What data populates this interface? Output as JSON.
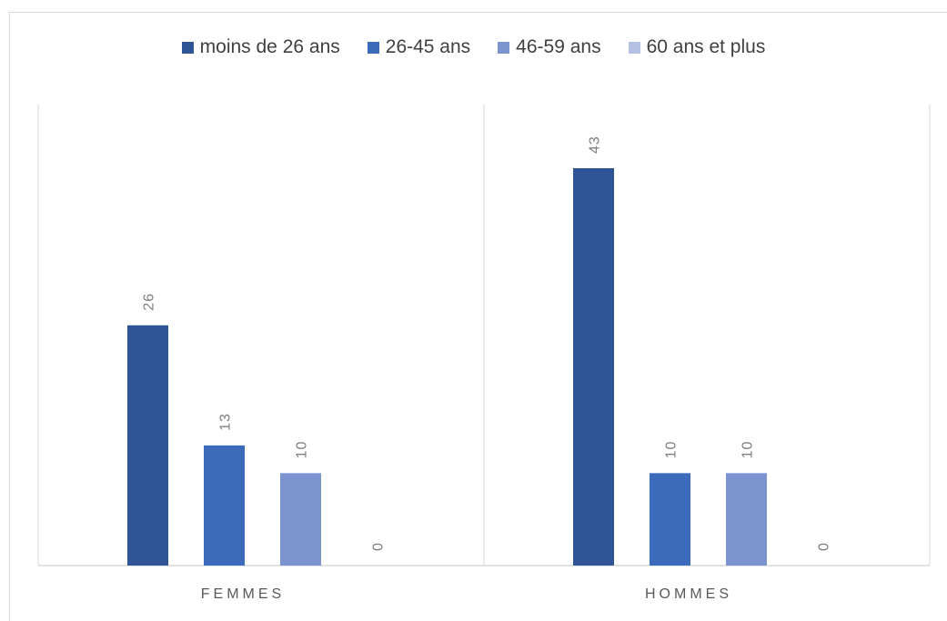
{
  "chart_data": {
    "type": "bar",
    "title": "",
    "xlabel": "",
    "ylabel": "",
    "categories": [
      "FEMMES",
      "HOMMES"
    ],
    "series": [
      {
        "name": "moins de 26 ans",
        "values": [
          26,
          43
        ],
        "color": "#2f5597"
      },
      {
        "name": "26-45 ans",
        "values": [
          13,
          10
        ],
        "color": "#3d6bbb"
      },
      {
        "name": "46-59 ans",
        "values": [
          10,
          10
        ],
        "color": "#7b93cf"
      },
      {
        "name": "60 ans et plus",
        "values": [
          0,
          0
        ],
        "color": "#b4c0e4"
      }
    ],
    "ylim": [
      0,
      50
    ],
    "grid": false,
    "legend": "top",
    "data_labels": true
  }
}
